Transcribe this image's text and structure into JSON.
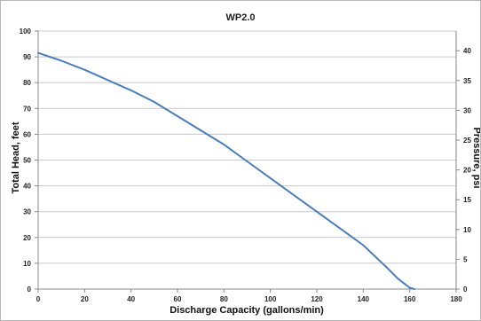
{
  "chart_data": {
    "type": "line",
    "title": "WP2.0",
    "xlabel": "Discharge Capacity (gallons/min)",
    "ylabel": "Total Head, feet",
    "y2label": "Pressure, psi",
    "xlim": [
      0,
      180
    ],
    "ylim": [
      0,
      100
    ],
    "y2lim": [
      0,
      43.3
    ],
    "x_ticks": [
      0,
      20,
      40,
      60,
      80,
      100,
      120,
      140,
      160,
      180
    ],
    "y_ticks": [
      0,
      10,
      20,
      30,
      40,
      50,
      60,
      70,
      80,
      90,
      100
    ],
    "y2_ticks": [
      0,
      5,
      10,
      15,
      20,
      25,
      30,
      35,
      40
    ],
    "grid": "horizontal",
    "legend": "none",
    "line_color": "#4a7ebb",
    "series": [
      {
        "x": [
          0,
          10,
          20,
          30,
          40,
          50,
          60,
          70,
          80,
          90,
          100,
          110,
          120,
          130,
          140,
          150,
          155,
          160,
          162
        ],
        "values": [
          91.5,
          88.5,
          85,
          81,
          77,
          72.5,
          67,
          61.5,
          56,
          49.5,
          43,
          36.5,
          30,
          23.5,
          17,
          8.5,
          4,
          0.5,
          0
        ]
      }
    ]
  }
}
